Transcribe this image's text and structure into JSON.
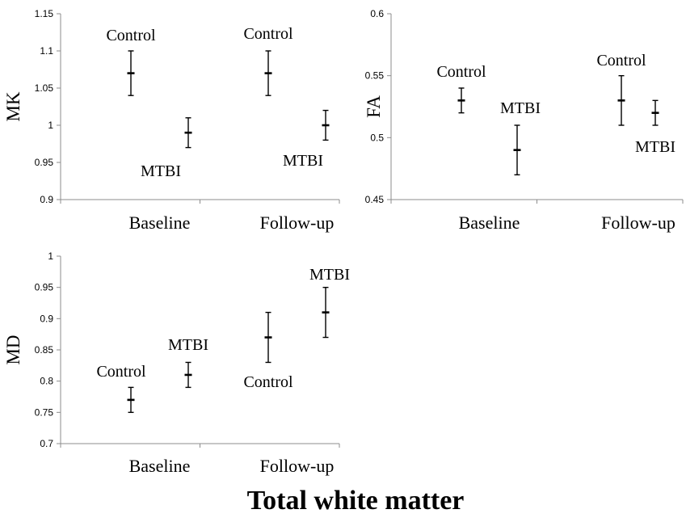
{
  "title": "Total white matter",
  "chart_data": [
    {
      "type": "scatter",
      "ylabel": "MK",
      "categories": [
        "Baseline",
        "Follow-up"
      ],
      "ylim": [
        0.9,
        1.15
      ],
      "yticks": [
        "0.9",
        "0.95",
        "1",
        "1.05",
        "1.1",
        "1.15"
      ],
      "series": [
        {
          "name": "Control",
          "values": [
            1.07,
            1.07
          ],
          "lower": [
            1.04,
            1.04
          ],
          "upper": [
            1.1,
            1.1
          ]
        },
        {
          "name": "MTBI",
          "values": [
            0.99,
            1.0
          ],
          "lower": [
            0.97,
            0.98
          ],
          "upper": [
            1.01,
            1.02
          ]
        }
      ]
    },
    {
      "type": "scatter",
      "ylabel": "FA",
      "categories": [
        "Baseline",
        "Follow-up"
      ],
      "ylim": [
        0.45,
        0.6
      ],
      "yticks": [
        "0.45",
        "0.5",
        "0.55",
        "0.6"
      ],
      "series": [
        {
          "name": "Control",
          "values": [
            0.53,
            0.53
          ],
          "lower": [
            0.52,
            0.51
          ],
          "upper": [
            0.54,
            0.55
          ]
        },
        {
          "name": "MTBI",
          "values": [
            0.49,
            0.52
          ],
          "lower": [
            0.47,
            0.51
          ],
          "upper": [
            0.51,
            0.53
          ]
        }
      ]
    },
    {
      "type": "scatter",
      "ylabel": "MD",
      "categories": [
        "Baseline",
        "Follow-up"
      ],
      "ylim": [
        0.7,
        1.0
      ],
      "yticks": [
        "0.7",
        "0.75",
        "0.8",
        "0.85",
        "0.9",
        "0.95",
        "1"
      ],
      "series": [
        {
          "name": "Control",
          "values": [
            0.77,
            0.87
          ],
          "lower": [
            0.75,
            0.83
          ],
          "upper": [
            0.79,
            0.91
          ]
        },
        {
          "name": "MTBI",
          "values": [
            0.81,
            0.91
          ],
          "lower": [
            0.79,
            0.87
          ],
          "upper": [
            0.83,
            0.95
          ]
        }
      ]
    }
  ]
}
